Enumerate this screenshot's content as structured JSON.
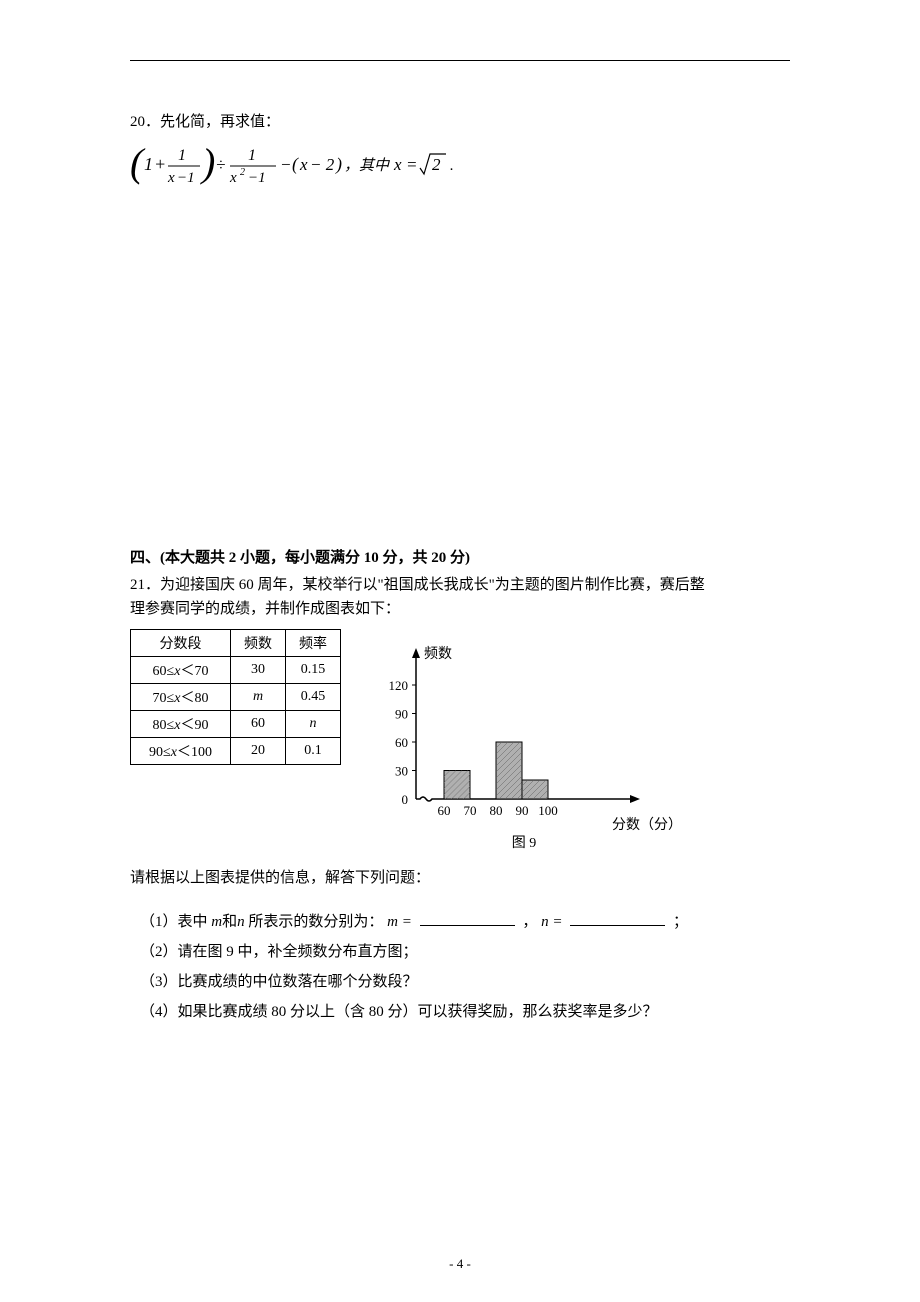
{
  "q20": {
    "title": "20．先化简，再求值：",
    "formula_tail": "，其中",
    "formula_x_eq": "x = √2",
    "period": "."
  },
  "section4": {
    "title": "四、(本大题共 2 小题，每小题满分 10 分，共 20 分)"
  },
  "q21": {
    "intro1": "21．为迎接国庆 60 周年，某校举行以\"祖国成长我成长\"为主题的图片制作比赛，赛后整",
    "intro2": "理参赛同学的成绩，并制作成图表如下：",
    "table": {
      "headers": [
        "分数段",
        "频数",
        "频率"
      ],
      "rows": [
        [
          "60≤x＜70",
          "30",
          "0.15"
        ],
        [
          "70≤x＜80",
          "m",
          "0.45"
        ],
        [
          "80≤x＜90",
          "60",
          "n"
        ],
        [
          "90≤x＜100",
          "20",
          "0.1"
        ]
      ]
    },
    "chart": {
      "ylabel": "频数",
      "xlabel": "分数（分）",
      "caption": "图 9",
      "yticks": [
        0,
        30,
        60,
        90,
        120
      ],
      "xticks": [
        60,
        70,
        80,
        90,
        100
      ],
      "bars": [
        {
          "x": 60,
          "height": 30,
          "width": 10
        },
        {
          "x": 80,
          "height": 60,
          "width": 10
        },
        {
          "x": 90,
          "height": 20,
          "width": 10
        }
      ],
      "bar_fill": "#b0b0b0",
      "bar_stroke": "#000000",
      "ymax": 140,
      "ystep": 30,
      "axis_origin_x": 45,
      "axis_origin_y": 170,
      "x_scale": 2.6,
      "y_scale": 0.95
    },
    "prompt": "请根据以上图表提供的信息，解答下列问题：",
    "sub1_a": "（1）表中",
    "sub1_m": "m",
    "sub1_b": "和",
    "sub1_n": "n",
    "sub1_c": "所表示的数分别为：",
    "sub1_m2": "m =",
    "sub1_d": "，",
    "sub1_n2": "n =",
    "sub1_e": "；",
    "sub2": "（2）请在图 9 中，补全频数分布直方图；",
    "sub3": "（3）比赛成绩的中位数落在哪个分数段？",
    "sub4": "（4）如果比赛成绩 80 分以上（含 80 分）可以获得奖励，那么获奖率是多少？"
  },
  "page_number": "- 4 -"
}
